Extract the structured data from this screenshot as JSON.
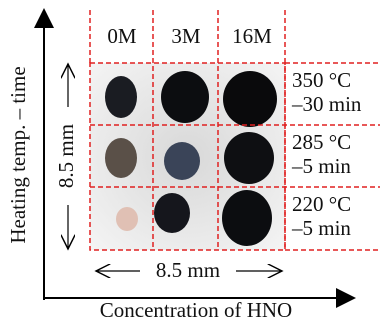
{
  "axes": {
    "y_label": "Heating temp. – time",
    "x_label": "Concentration of HNO"
  },
  "columns": [
    "0M",
    "3M",
    "16M"
  ],
  "rows": [
    [
      "350 °C",
      "–30 min"
    ],
    [
      "285 °C",
      "–5 min"
    ],
    [
      "220 °C",
      "–5 min"
    ]
  ],
  "scale": {
    "vertical": "8.5 mm",
    "horizontal": "8.5 mm"
  }
}
